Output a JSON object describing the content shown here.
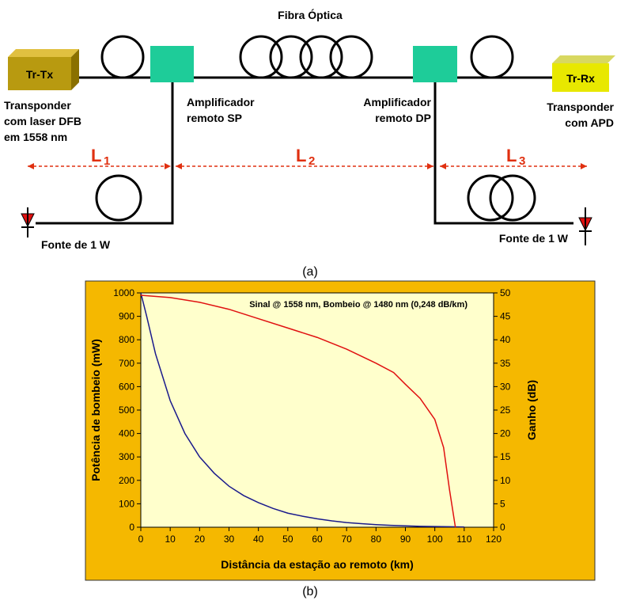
{
  "diagram": {
    "fiber_title": "Fibra Óptica",
    "tx_box": "Tr-Tx",
    "rx_box": "Tr-Rx",
    "tx_label": [
      "Transponder",
      "com laser DFB",
      "em 1558 nm"
    ],
    "sp_label": [
      "Amplificador",
      "remoto SP"
    ],
    "dp_label": [
      "Amplificador",
      "remoto DP"
    ],
    "rx_label": [
      "Transponder",
      "com APD"
    ],
    "spans": [
      {
        "main": "L",
        "sub": "1"
      },
      {
        "main": "L",
        "sub": "2"
      },
      {
        "main": "L",
        "sub": "3"
      }
    ],
    "source_left": "Fonte de 1 W",
    "source_right": "Fonte de 1 W",
    "caption": "(a)"
  },
  "chart_data": {
    "type": "line",
    "caption": "(b)",
    "annotation": "Sinal @ 1558 nm, Bombeio @ 1480 nm (0,248 dB/km)",
    "xlabel": "Distância da estação ao remoto (km)",
    "ylabel": "Potência de bombeio (mW)",
    "y2label": "Ganho (dB)",
    "xlim": [
      0,
      120
    ],
    "xticks": [
      0,
      10,
      20,
      30,
      40,
      50,
      60,
      70,
      80,
      90,
      100,
      110,
      120
    ],
    "ylim": [
      0,
      1000
    ],
    "yticks": [
      0,
      100,
      200,
      300,
      400,
      500,
      600,
      700,
      800,
      900,
      1000
    ],
    "y2lim": [
      0,
      50
    ],
    "y2ticks": [
      0,
      5,
      10,
      15,
      20,
      25,
      30,
      35,
      40,
      45,
      50
    ],
    "series": [
      {
        "color": "#1a1a8c",
        "axis": "y",
        "x": [
          0,
          2,
          5,
          10,
          15,
          20,
          25,
          30,
          35,
          40,
          45,
          50,
          55,
          60,
          65,
          70,
          75,
          80,
          85,
          90,
          95,
          100,
          105,
          110
        ],
        "values": [
          1000,
          900,
          740,
          540,
          400,
          300,
          230,
          175,
          135,
          105,
          80,
          60,
          47,
          36,
          27,
          20,
          15,
          11,
          8,
          6,
          4,
          3,
          2,
          1
        ]
      },
      {
        "color": "#e01010",
        "axis": "y2",
        "x": [
          0,
          10,
          20,
          30,
          40,
          50,
          60,
          70,
          80,
          86,
          90,
          95,
          100,
          103,
          105,
          107
        ],
        "values": [
          49.5,
          49,
          48,
          46.5,
          44.5,
          42.5,
          40.5,
          38,
          35,
          33,
          30.5,
          27.5,
          23,
          17,
          8,
          0
        ]
      }
    ]
  }
}
